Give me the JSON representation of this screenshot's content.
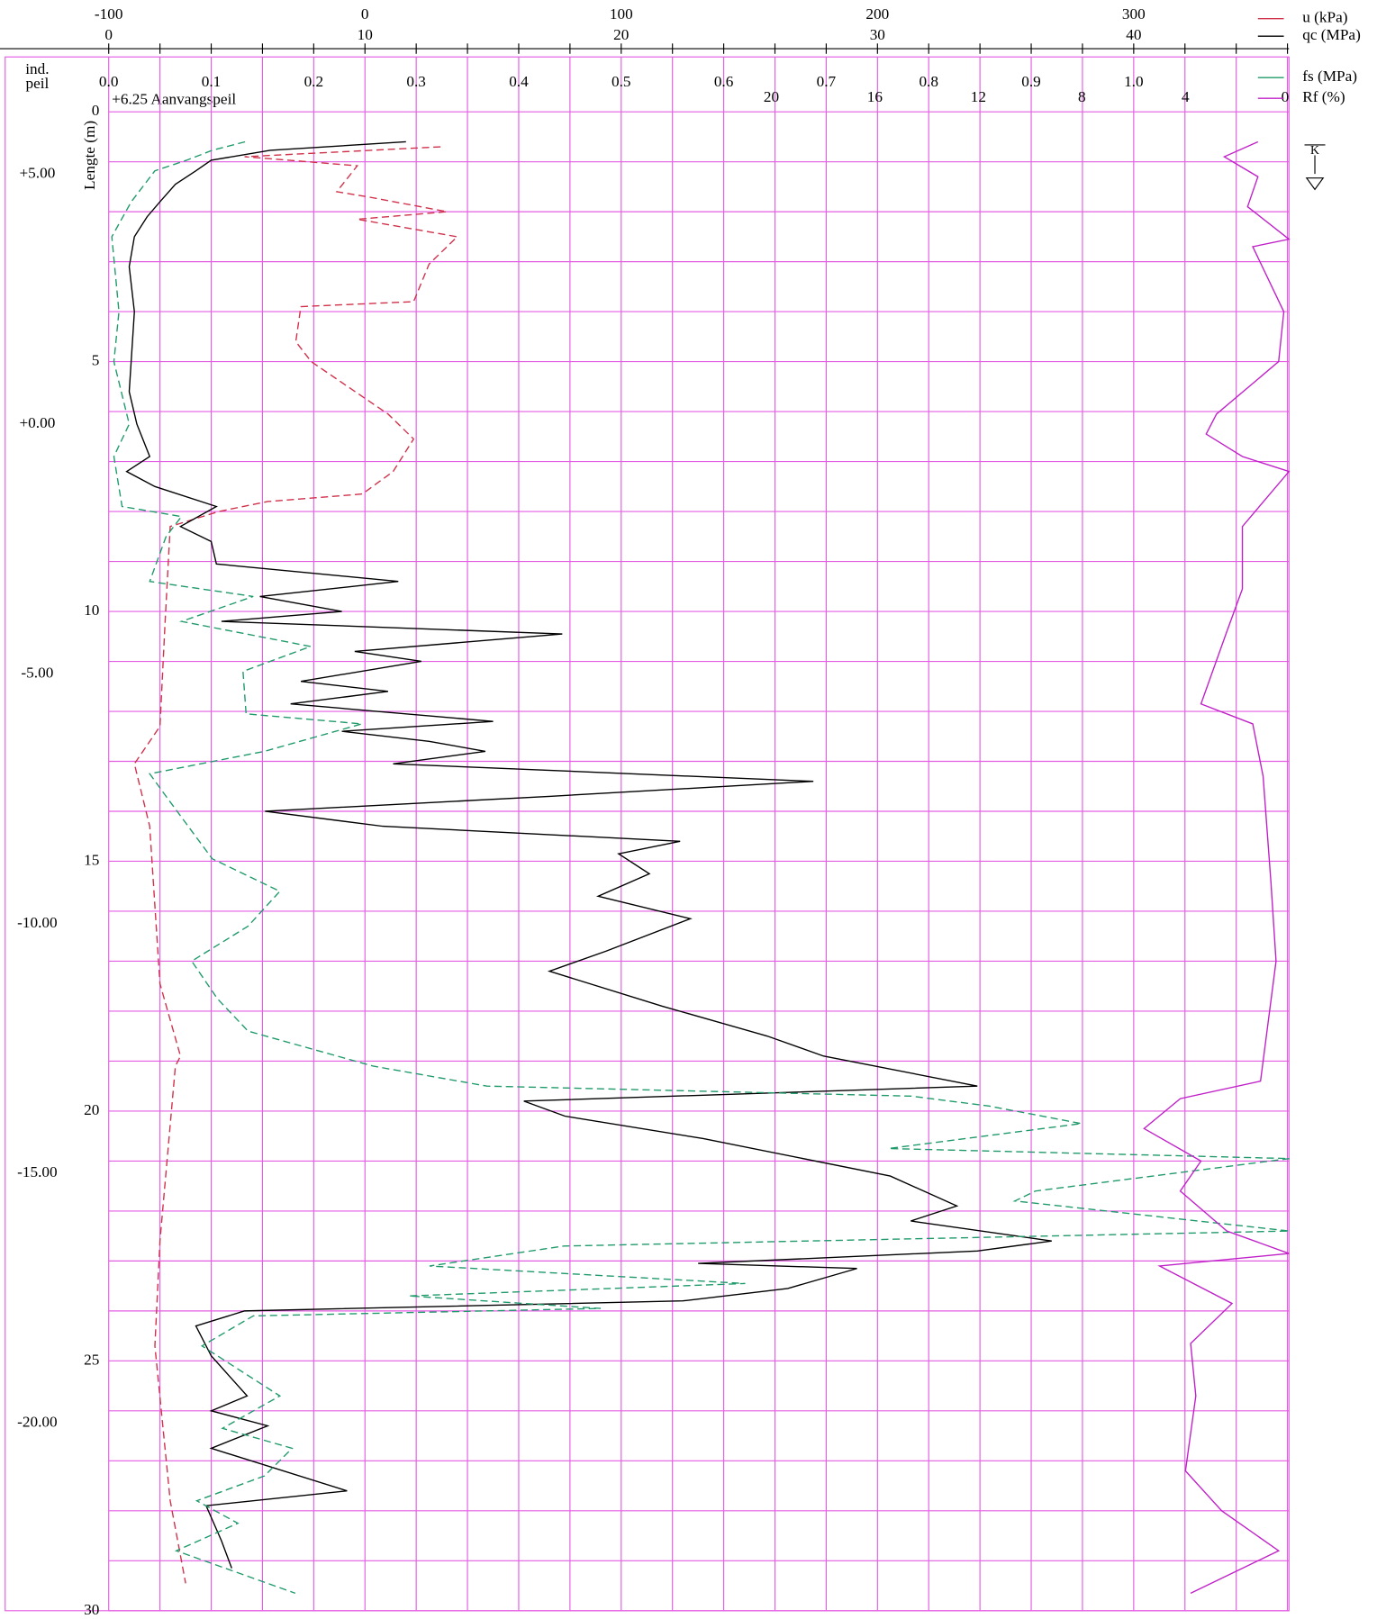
{
  "chart_data": {
    "type": "line",
    "y_axis_label": "Lengte (m)",
    "y2_axis_label_lines": [
      "ind.",
      "peil"
    ],
    "annotation": "+6.25 Aanvangspeil",
    "ylim": [
      0,
      30
    ],
    "yticks": [
      0,
      5,
      10,
      15,
      20,
      25,
      30
    ],
    "y_minor_ticks": [
      0,
      1,
      2,
      3,
      4,
      5,
      6,
      7,
      8,
      9,
      10,
      11,
      12,
      13,
      14,
      15,
      16,
      17,
      18,
      19,
      20,
      21,
      22,
      23,
      24,
      25,
      26,
      27,
      28,
      29,
      30
    ],
    "y2lim": [
      6.25,
      -23.75
    ],
    "y2ticks": [
      {
        "value": 5,
        "label": "+5.00"
      },
      {
        "value": 0,
        "label": "+0.00"
      },
      {
        "value": -5,
        "label": "-5.00"
      },
      {
        "value": -10,
        "label": "-10.00"
      },
      {
        "value": -15,
        "label": "-15.00"
      },
      {
        "value": -20,
        "label": "-20.00"
      }
    ],
    "grid": true,
    "x_axes": [
      {
        "id": "u",
        "xlim": [
          -100,
          360.6
        ],
        "xticks": [
          -100,
          0,
          100,
          200,
          300
        ]
      },
      {
        "id": "qc",
        "xlim": [
          0,
          46.06
        ],
        "xticks": [
          0,
          10,
          20,
          30,
          40
        ],
        "x_minor_ticks": [
          0,
          2,
          4,
          6,
          8,
          10,
          12,
          14,
          16,
          18,
          20,
          22,
          24,
          26,
          28,
          30,
          32,
          34,
          36,
          38,
          40,
          42,
          44,
          46
        ]
      },
      {
        "id": "fs",
        "xlim": [
          0,
          1.1515
        ],
        "xticks": [
          {
            "value": 0,
            "label": "0.0"
          },
          0.1,
          0.2,
          0.3,
          0.4,
          0.5,
          0.6,
          0.7,
          0.8,
          0.9,
          {
            "value": 1,
            "label": "1.0"
          }
        ]
      },
      {
        "id": "rf",
        "xlim": [
          45.6,
          0
        ],
        "xticks": [
          20,
          16,
          12,
          8,
          4,
          0
        ]
      }
    ],
    "series": [
      {
        "name": "u (kPa)",
        "color": "#d0304a",
        "dashed": true,
        "axis": "u",
        "depth": [
          0.7,
          0.9,
          1.08,
          1.6,
          1.7,
          2.0,
          2.15,
          2.5,
          3.05,
          3.8,
          3.9,
          4.6,
          5.0,
          6.05,
          6.55,
          7.2,
          7.65,
          7.8,
          8.0,
          8.3,
          10.2,
          12.3,
          13.05,
          14.3,
          17.45,
          18.9,
          19.1,
          22.6,
          24.7,
          27.8,
          29.45
        ],
        "values": [
          29.5,
          -47,
          -3,
          -11,
          1,
          32,
          -3,
          36,
          25,
          19,
          -25,
          -27,
          -21,
          9,
          19,
          11,
          -1,
          -38,
          -57,
          -76,
          -78,
          -80,
          -90,
          -84,
          -80,
          -72,
          -74,
          -80,
          -82,
          -76,
          -70
        ]
      },
      {
        "name": "qc (MPa)",
        "color": "#000000",
        "dashed": false,
        "axis": "qc",
        "depth": [
          0.6,
          0.77,
          0.97,
          1.18,
          1.45,
          1.8,
          2.1,
          2.5,
          3.1,
          4.0,
          4.8,
          5.6,
          6.25,
          6.9,
          7.2,
          7.5,
          7.9,
          8.3,
          8.6,
          9.05,
          9.4,
          9.7,
          10.0,
          10.2,
          10.45,
          10.8,
          11.0,
          11.4,
          11.6,
          11.85,
          12.2,
          12.4,
          12.6,
          12.8,
          13.05,
          13.4,
          13.7,
          14.0,
          14.3,
          14.6,
          14.85,
          15.25,
          15.7,
          16.15,
          16.8,
          17.2,
          17.9,
          18.5,
          18.9,
          19.5,
          19.8,
          20.1,
          20.55,
          21.3,
          21.9,
          22.2,
          22.6,
          22.8,
          23.05,
          23.15,
          23.55,
          23.8,
          24.0,
          24.3,
          24.9,
          25.7,
          26.0,
          26.3,
          26.75,
          27.6,
          27.9,
          28.6,
          29.15
        ],
        "values": [
          11.6,
          6.3,
          4.0,
          3.4,
          2.6,
          2.0,
          1.5,
          1.0,
          0.8,
          1.0,
          0.9,
          0.8,
          1.1,
          1.6,
          0.7,
          1.8,
          4.2,
          2.8,
          4.0,
          4.2,
          11.3,
          5.9,
          9.1,
          4.4,
          17.7,
          9.6,
          12.2,
          7.5,
          10.9,
          7.1,
          15.0,
          9.1,
          12.5,
          14.7,
          11.1,
          27.5,
          17.2,
          6.1,
          10.7,
          22.3,
          19.9,
          21.1,
          19.1,
          22.7,
          19.4,
          17.2,
          21.6,
          25.7,
          27.9,
          33.9,
          16.2,
          17.8,
          23.2,
          30.5,
          33.1,
          31.3,
          36.8,
          33.9,
          23.0,
          29.2,
          26.5,
          22.4,
          5.3,
          3.4,
          4.0,
          5.4,
          4.0,
          6.2,
          4.0,
          9.3,
          3.8,
          4.4,
          4.8
        ]
      },
      {
        "name": "fs (MPa)",
        "color": "#1f9a6a",
        "dashed": true,
        "axis": "fs",
        "depth": [
          0.6,
          0.77,
          0.97,
          1.18,
          1.8,
          2.5,
          4.0,
          5.0,
          6.25,
          6.9,
          7.9,
          8.1,
          8.5,
          9.4,
          9.7,
          10.2,
          10.7,
          11.2,
          12.05,
          12.25,
          12.8,
          13.25,
          13.7,
          14.95,
          15.6,
          16.3,
          17.0,
          17.75,
          18.4,
          19.1,
          19.5,
          19.7,
          19.9,
          20.25,
          20.75,
          20.95,
          21.6,
          21.8,
          22.4,
          22.7,
          23.1,
          23.45,
          23.7,
          23.95,
          24.1,
          24.7,
          25.7,
          26.35,
          26.75,
          27.3,
          27.8,
          28.25,
          28.8,
          29.65
        ],
        "values": [
          0.133,
          0.101,
          0.076,
          0.045,
          0.022,
          0.003,
          0.01,
          0.005,
          0.02,
          0.005,
          0.013,
          0.071,
          0.056,
          0.04,
          0.141,
          0.071,
          0.197,
          0.131,
          0.134,
          0.247,
          0.152,
          0.04,
          0.056,
          0.101,
          0.167,
          0.136,
          0.081,
          0.106,
          0.136,
          0.258,
          0.369,
          0.783,
          0.859,
          0.949,
          0.761,
          1.152,
          0.904,
          0.884,
          1.152,
          0.444,
          0.313,
          0.621,
          0.293,
          0.48,
          0.141,
          0.091,
          0.167,
          0.111,
          0.179,
          0.152,
          0.086,
          0.126,
          0.066,
          0.182
        ]
      },
      {
        "name": "Rf (%)",
        "color": "#c020c8",
        "dashed": false,
        "axis": "rf",
        "depth": [
          0.6,
          0.9,
          1.3,
          1.9,
          2.55,
          2.7,
          4.0,
          5.0,
          6.05,
          6.45,
          6.9,
          7.2,
          8.3,
          9.55,
          10.4,
          11.85,
          12.25,
          13.3,
          15.4,
          17.0,
          19.4,
          19.75,
          20.35,
          21.0,
          21.6,
          22.4,
          22.85,
          23.1,
          23.85,
          24.65,
          25.7,
          27.2,
          28.0,
          28.8,
          29.65
        ],
        "values": [
          1.2,
          2.5,
          1.2,
          1.6,
          0,
          1.4,
          0.2,
          0.4,
          2.8,
          3.2,
          1.8,
          0,
          1.8,
          1.8,
          2.4,
          3.4,
          1.4,
          1.0,
          0.7,
          0.5,
          1.1,
          4.2,
          5.6,
          3.4,
          4.2,
          2.4,
          0,
          5.0,
          2.2,
          3.8,
          3.6,
          4.0,
          2.6,
          0.4,
          3.8
        ]
      }
    ]
  }
}
